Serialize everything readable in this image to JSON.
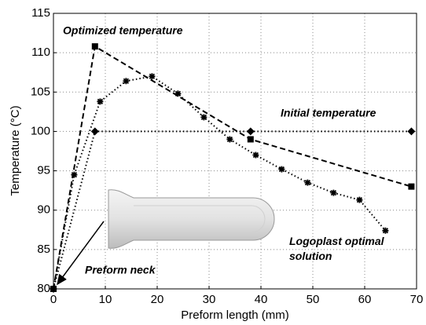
{
  "chart_data": {
    "type": "line",
    "xlabel": "Preform length (mm)",
    "ylabel": "Temperature (°C)",
    "xlim": [
      0,
      70
    ],
    "xticks": [
      0,
      10,
      20,
      30,
      40,
      50,
      60,
      70
    ],
    "ylim": [
      80,
      115
    ],
    "yticks": [
      80,
      85,
      90,
      95,
      100,
      105,
      110,
      115
    ],
    "grid": true,
    "series": [
      {
        "name": "Optimized temperature",
        "color": "#000000",
        "dash": "dashed",
        "marker": "square",
        "x": [
          0,
          8,
          38,
          69
        ],
        "values": [
          80,
          110.8,
          99,
          93
        ]
      },
      {
        "name": "Initial temperature",
        "color": "#000000",
        "dash": "dotted",
        "marker": "diamond",
        "x": [
          0,
          8,
          38,
          69
        ],
        "values": [
          80,
          100,
          100,
          100
        ]
      },
      {
        "name": "Logoplast optimal solution",
        "color": "#000000",
        "dash": "dotted",
        "marker": "asterisk",
        "x": [
          0,
          4,
          9,
          14,
          19,
          24,
          29,
          34,
          39,
          44,
          49,
          54,
          59,
          64
        ],
        "values": [
          80,
          94.5,
          103.8,
          106.4,
          107,
          104.8,
          101.8,
          99,
          97,
          95.2,
          93.5,
          92.2,
          91.3,
          87.4
        ]
      }
    ],
    "annotation": "Preform neck"
  }
}
